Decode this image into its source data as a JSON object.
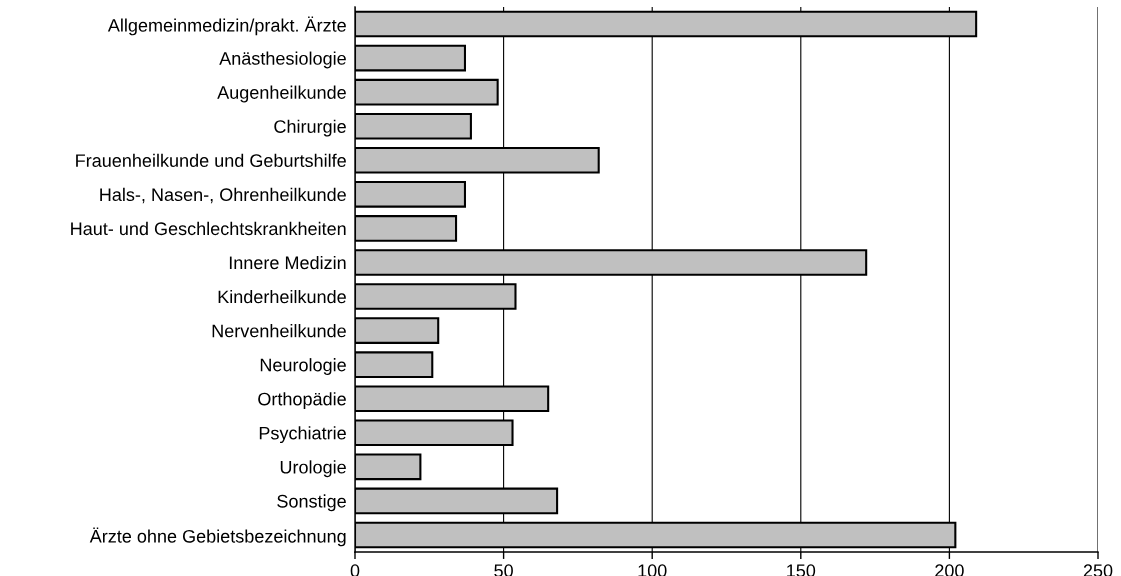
{
  "chart_data": {
    "type": "bar",
    "orientation": "horizontal",
    "categories": [
      "Allgemeinmedizin/prakt. Ärzte",
      "Anästhesiologie",
      "Augenheilkunde",
      "Chirurgie",
      "Frauenheilkunde und Geburtshilfe",
      "Hals-, Nasen-, Ohrenheilkunde",
      "Haut- und Geschlechtskrankheiten",
      "Innere Medizin",
      "Kinderheilkunde",
      "Nervenheilkunde",
      "Neurologie",
      "Orthopädie",
      "Psychiatrie",
      "Urologie",
      "Sonstige",
      "Ärzte ohne Gebietsbezeichnung"
    ],
    "values": [
      209,
      37,
      48,
      39,
      82,
      37,
      34,
      172,
      54,
      28,
      26,
      65,
      53,
      22,
      68,
      202
    ],
    "color": "#c0c0c0",
    "xlim": [
      0,
      250
    ],
    "xticks": [
      0,
      50,
      100,
      150,
      200,
      250
    ],
    "grid": "x",
    "legend": false
  }
}
